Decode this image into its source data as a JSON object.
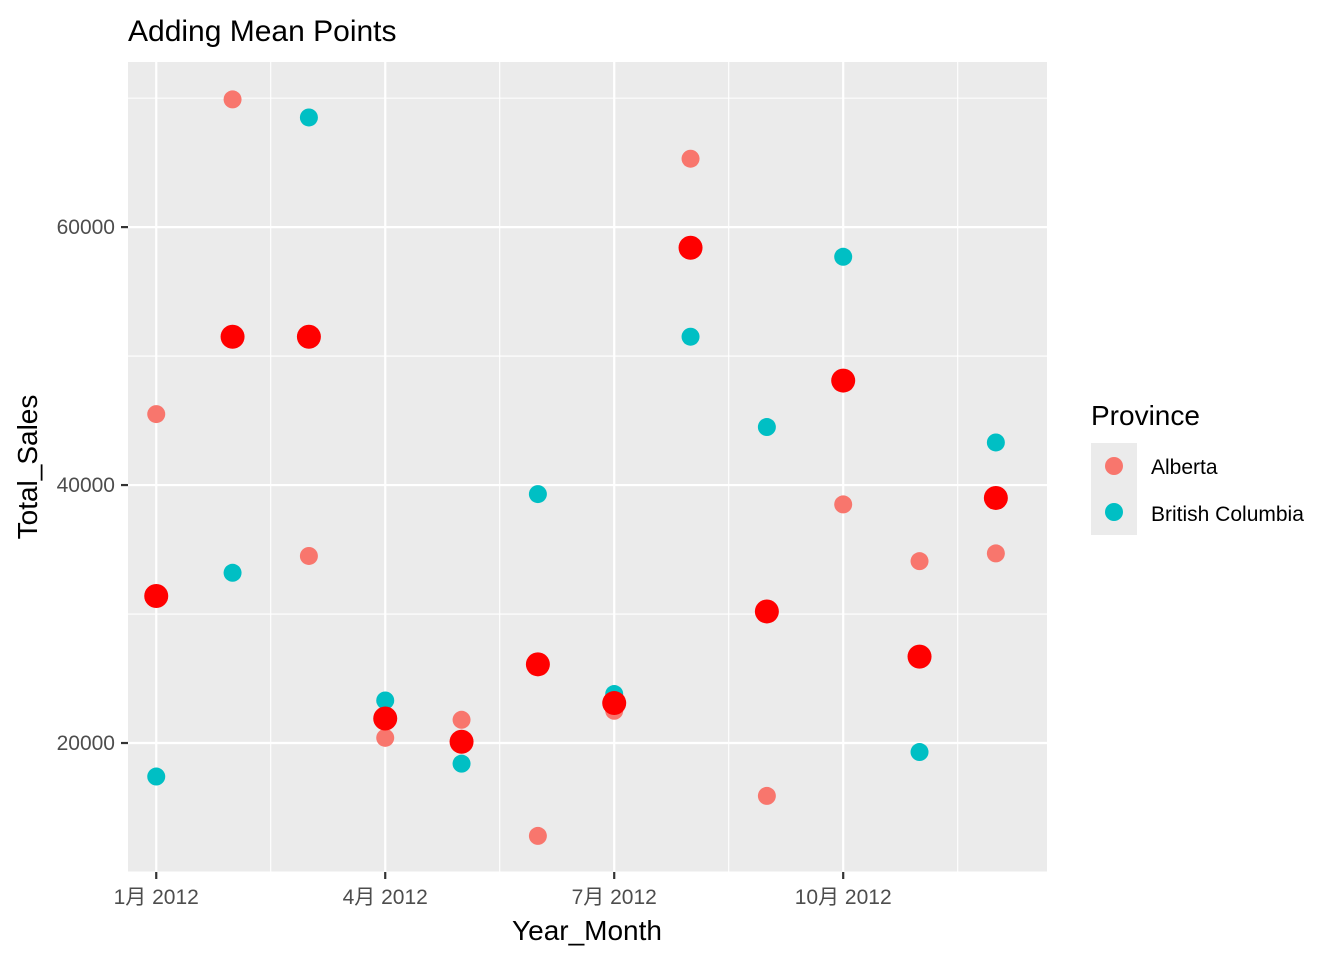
{
  "chart_data": {
    "type": "scatter",
    "title": "Adding Mean Points",
    "xlabel": "Year_Month",
    "ylabel": "Total_Sales",
    "x_tick_labels": [
      "1月 2012",
      "4月 2012",
      "7月 2012",
      "10月 2012"
    ],
    "x_tick_months": [
      1,
      4,
      7,
      10
    ],
    "x": [
      1,
      2,
      3,
      4,
      5,
      6,
      7,
      8,
      9,
      10,
      11,
      12
    ],
    "xlim": [
      0.63,
      12.67
    ],
    "y_ticks": [
      20000,
      40000,
      60000
    ],
    "ylim": [
      10000,
      72800
    ],
    "grid": true,
    "legend": {
      "title": "Province",
      "placement": "right",
      "entries": [
        {
          "name": "Alberta",
          "color": "#F8766D"
        },
        {
          "name": "British Columbia",
          "color": "#00BFC4"
        }
      ]
    },
    "series": [
      {
        "name": "Alberta",
        "color": "#F8766D",
        "values": [
          45500,
          69900,
          34500,
          20400,
          21800,
          12800,
          22500,
          65300,
          15900,
          38500,
          34100,
          34700
        ]
      },
      {
        "name": "British Columbia",
        "color": "#00BFC4",
        "values": [
          17400,
          33200,
          68500,
          23300,
          18400,
          39300,
          23800,
          51500,
          44500,
          57700,
          19300,
          43300
        ]
      },
      {
        "color": "#FF0000",
        "values": [
          31400,
          51500,
          51500,
          21900,
          20100,
          26100,
          23100,
          58400,
          30200,
          48100,
          26700,
          39000
        ]
      }
    ]
  }
}
